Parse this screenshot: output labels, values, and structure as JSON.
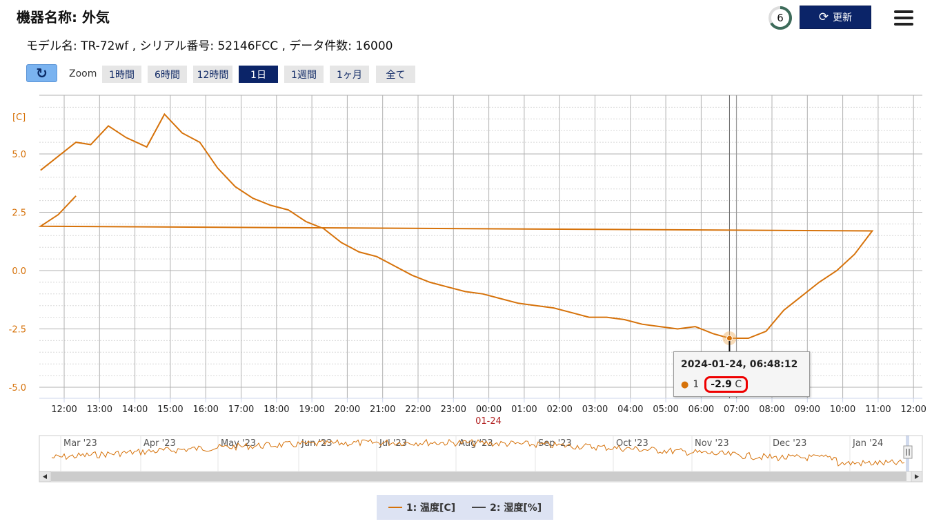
{
  "header": {
    "device_title": "機器名称: 外気",
    "model_info": "モデル名: TR-72wf , シリアル番号: 52146FCC , データ件数: 16000",
    "counter": "6",
    "refresh_label": "更新"
  },
  "toolbar": {
    "zoom_label": "Zoom",
    "zoom_buttons": [
      "1時間",
      "6時間",
      "12時間",
      "1日",
      "1週間",
      "1ヶ月",
      "全て"
    ],
    "zoom_active": "1日"
  },
  "chart_data": {
    "type": "line",
    "ylabel": "[C]",
    "ylim": [
      -5.0,
      7.0
    ],
    "y_ticks": [
      "5.0",
      "2.5",
      "0.0",
      "-2.5",
      "-5.0"
    ],
    "x_ticks": [
      "12:00",
      "13:00",
      "14:00",
      "15:00",
      "16:00",
      "17:00",
      "18:00",
      "19:00",
      "20:00",
      "21:00",
      "22:00",
      "23:00",
      "00:00",
      "01:00",
      "02:00",
      "03:00",
      "04:00",
      "05:00",
      "06:00",
      "07:00",
      "08:00",
      "09:00",
      "10:00",
      "11:00",
      "12:00"
    ],
    "x_date_label": "01-24",
    "series": [
      {
        "name": "1: 温度[C]",
        "color": "#d6720a",
        "x": [
          "11:20",
          "12:20",
          "12:45",
          "13:15",
          "13:45",
          "14:20",
          "14:50",
          "15:20",
          "15:50",
          "16:20",
          "16:50",
          "17:20",
          "17:50",
          "18:20",
          "18:50",
          "19:20",
          "19:50",
          "20:20",
          "20:50",
          "21:20",
          "21:50",
          "22:20",
          "22:50",
          "23:20",
          "23:50",
          "00:20",
          "00:50",
          "01:20",
          "01:50",
          "02:20",
          "02:50",
          "03:20",
          "03:50",
          "04:20",
          "04:50",
          "05:20",
          "05:50",
          "06:20",
          "06:48",
          "07:20",
          "07:50",
          "08:20",
          "08:50",
          "09:20",
          "09:50",
          "10:20",
          "10:50",
          "11:20",
          "11:50",
          "12:20"
        ],
        "values": [
          4.3,
          5.5,
          5.4,
          6.2,
          5.7,
          5.3,
          6.7,
          5.9,
          5.5,
          4.4,
          3.6,
          3.1,
          2.8,
          2.6,
          2.1,
          1.8,
          1.2,
          0.8,
          0.6,
          0.2,
          -0.2,
          -0.5,
          -0.7,
          -0.9,
          -1.0,
          -1.2,
          -1.4,
          -1.5,
          -1.6,
          -1.8,
          -2.0,
          -2.0,
          -2.1,
          -2.3,
          -2.4,
          -2.5,
          -2.4,
          -2.7,
          -2.9,
          -2.9,
          -2.6,
          -1.7,
          -1.1,
          -0.5,
          0.0,
          0.7,
          1.7,
          1.9,
          2.4,
          3.2
        ]
      },
      {
        "name": "2: 湿度[%]",
        "color": "#444444",
        "values": []
      }
    ],
    "navigator": {
      "months": [
        "Mar '23",
        "Apr '23",
        "May '23",
        "Jun '23",
        "Jul '23",
        "Aug '23",
        "Sep '23",
        "Oct '23",
        "Nov '23",
        "Dec '23",
        "Jan '24"
      ]
    },
    "tooltip": {
      "datetime": "2024-01-24, 06:48:12",
      "series": "1",
      "value": "-2.9",
      "unit": "C"
    }
  },
  "legend": {
    "items": [
      {
        "label": "1: 温度[C]",
        "color": "#d6720a"
      },
      {
        "label": "2: 湿度[%]",
        "color": "#444444"
      }
    ]
  }
}
